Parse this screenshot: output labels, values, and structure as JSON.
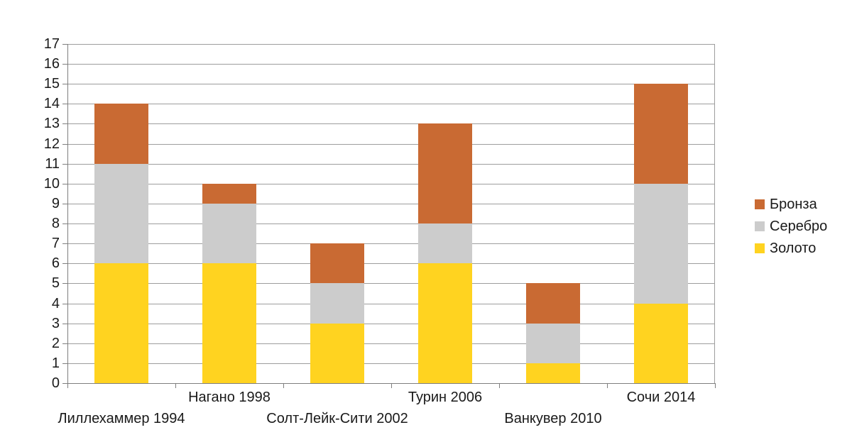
{
  "chart_data": {
    "type": "bar",
    "stacked": true,
    "title": "",
    "xlabel": "",
    "ylabel": "",
    "categories": [
      "Лиллехаммер 1994",
      "Нагано 1998",
      "Солт-Лейк-Сити 2002",
      "Турин 2006",
      "Ванкувер 2010",
      "Сочи 2014"
    ],
    "series": [
      {
        "key": "gold",
        "name": "Золото",
        "color": "#FFD320",
        "values": [
          6,
          6,
          3,
          6,
          1,
          4
        ]
      },
      {
        "key": "silver",
        "name": "Серебро",
        "color": "#CCCCCC",
        "values": [
          5,
          3,
          2,
          2,
          2,
          6
        ]
      },
      {
        "key": "bronze",
        "name": "Бронза",
        "color": "#C96A33",
        "values": [
          3,
          1,
          2,
          5,
          2,
          5
        ]
      }
    ],
    "ylim": [
      0,
      17
    ],
    "y_tick_interval": 1,
    "grid": true,
    "legend_position": "right",
    "legend_order_top_to_bottom": [
      "Бронза",
      "Серебро",
      "Золото"
    ]
  },
  "colors": {
    "background": "#FFFFFF",
    "grid": "#9D9D9D",
    "axis": "#7F7F7F",
    "text": "#1A1A1A"
  }
}
